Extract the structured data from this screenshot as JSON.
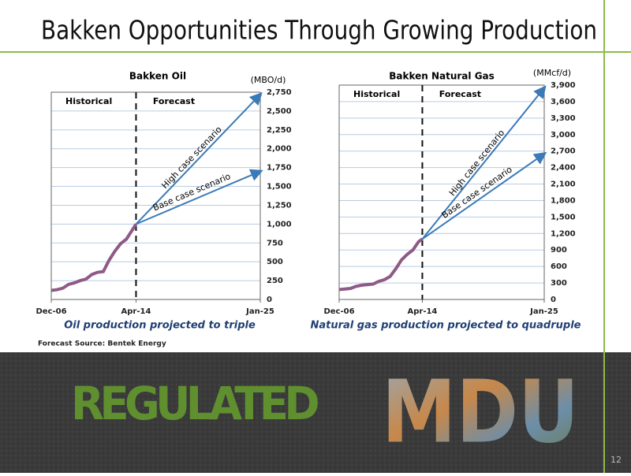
{
  "slide": {
    "title": "Bakken Opportunities Through Growing Production",
    "source": "Forecast Source: Bentek Energy",
    "banner": "REGULATED",
    "logo": "MDU",
    "page_number": "12"
  },
  "chart_data": [
    {
      "type": "line",
      "title": "Bakken Oil",
      "y_label": "(MBO/d)",
      "caption": "Oil production projected to triple",
      "forecast_label": "Forecast",
      "xlim": [
        "2006-12",
        "2025-01"
      ],
      "xticks": [
        {
          "value": "2006-12",
          "label": "Dec-06"
        },
        {
          "value": "2014-04",
          "label": "Apr-14"
        },
        {
          "value": "2025-01",
          "label": "Jan-25"
        }
      ],
      "ylim": [
        0,
        2750
      ],
      "yticks": [
        0,
        250,
        500,
        750,
        {
          "value": 1000,
          "label": "1,000"
        },
        {
          "value": 1250,
          "label": "1,250"
        },
        {
          "value": 1500,
          "label": "1,500"
        },
        {
          "value": 1750,
          "label": "1,750"
        },
        {
          "value": 2000,
          "label": "2,000"
        },
        {
          "value": 2250,
          "label": "2,250"
        },
        {
          "value": 2500,
          "label": "2,500"
        },
        {
          "value": 2750,
          "label": "2,750"
        }
      ],
      "grid": true,
      "series": [
        {
          "name": "Historical",
          "color": "#8e5a86",
          "arrow": false,
          "x": [
            "2006-12",
            "2007-06",
            "2007-12",
            "2008-06",
            "2008-12",
            "2009-06",
            "2009-12",
            "2010-06",
            "2010-12",
            "2011-06",
            "2011-12",
            "2012-06",
            "2012-12",
            "2013-06",
            "2013-12",
            "2014-04"
          ],
          "values": [
            120,
            130,
            150,
            200,
            220,
            250,
            270,
            330,
            360,
            370,
            520,
            640,
            740,
            800,
            920,
            1000
          ]
        },
        {
          "name": "High case scenario",
          "color": "#3a7ab8",
          "arrow": true,
          "x": [
            "2014-04",
            "2025-01"
          ],
          "values": [
            1000,
            2720
          ]
        },
        {
          "name": "Base case scenario",
          "color": "#3a7ab8",
          "arrow": true,
          "x": [
            "2014-04",
            "2025-01"
          ],
          "values": [
            1000,
            1700
          ]
        }
      ]
    },
    {
      "type": "line",
      "title": "Bakken Natural Gas",
      "y_label": "(MMcf/d)",
      "caption": "Natural gas production projected to quadruple",
      "forecast_label": "Forecast",
      "xlim": [
        "2006-12",
        "2025-01"
      ],
      "xticks": [
        {
          "value": "2006-12",
          "label": "Dec-06"
        },
        {
          "value": "2014-04",
          "label": "Apr-14"
        },
        {
          "value": "2025-01",
          "label": "Jan-25"
        }
      ],
      "ylim": [
        0,
        3900
      ],
      "yticks": [
        0,
        300,
        600,
        900,
        {
          "value": 1200,
          "label": "1,200"
        },
        {
          "value": 1500,
          "label": "1,500"
        },
        {
          "value": 1800,
          "label": "1,800"
        },
        {
          "value": 2100,
          "label": "2,100"
        },
        {
          "value": 2400,
          "label": "2,400"
        },
        {
          "value": 2700,
          "label": "2,700"
        },
        {
          "value": 3000,
          "label": "3,000"
        },
        {
          "value": 3300,
          "label": "3,300"
        },
        {
          "value": 3600,
          "label": "3,600"
        },
        {
          "value": 3900,
          "label": "3,900"
        }
      ],
      "grid": true,
      "series": [
        {
          "name": "Historical",
          "color": "#8e5a86",
          "arrow": false,
          "x": [
            "2006-12",
            "2007-06",
            "2007-12",
            "2008-06",
            "2008-12",
            "2009-06",
            "2009-12",
            "2010-06",
            "2010-12",
            "2011-06",
            "2011-12",
            "2012-06",
            "2012-12",
            "2013-06",
            "2013-12",
            "2014-04"
          ],
          "values": [
            180,
            190,
            200,
            240,
            260,
            270,
            280,
            330,
            360,
            420,
            560,
            720,
            820,
            900,
            1050,
            1100
          ]
        },
        {
          "name": "High case scenario",
          "color": "#3a7ab8",
          "arrow": true,
          "x": [
            "2014-04",
            "2025-01"
          ],
          "values": [
            1100,
            3850
          ]
        },
        {
          "name": "Base case scenario",
          "color": "#3a7ab8",
          "arrow": true,
          "x": [
            "2014-04",
            "2025-01"
          ],
          "values": [
            1100,
            2650
          ]
        }
      ]
    }
  ]
}
